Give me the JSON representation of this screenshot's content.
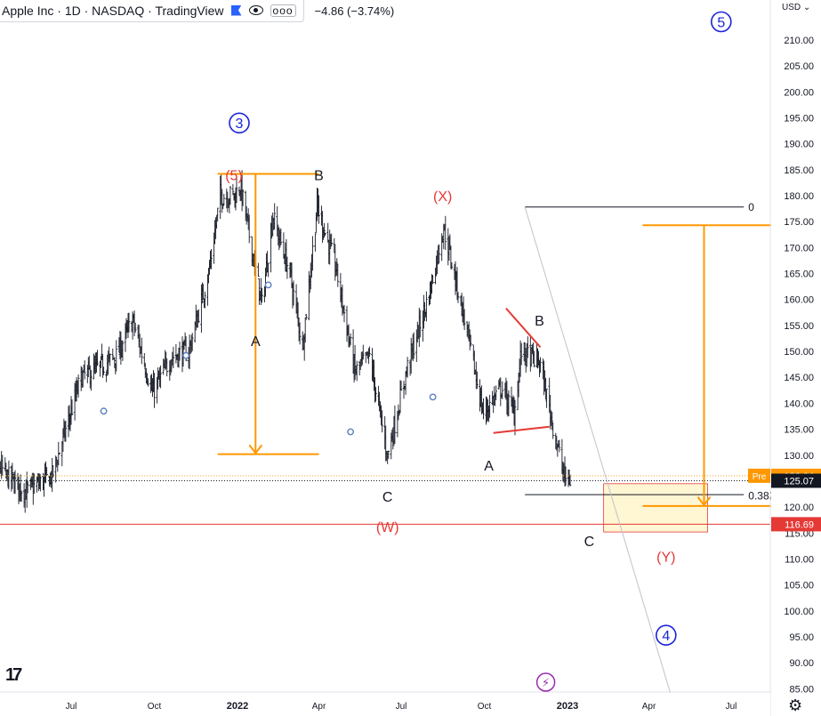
{
  "header": {
    "title": "Apple Inc · 1D · NASDAQ · TradingView",
    "flag_icon": "flag-icon",
    "eye_icon": "eye-icon",
    "more_icon": "more-icon",
    "more_label": "ooo",
    "change": "−4.86 (−3.74%)"
  },
  "chart_data": {
    "type": "candlestick",
    "currency": "USD",
    "y_ticks": [
      85,
      90,
      95,
      100,
      105,
      110,
      115,
      120,
      125,
      130,
      135,
      140,
      145,
      150,
      155,
      160,
      165,
      170,
      175,
      180,
      185,
      190,
      195,
      200,
      205,
      210
    ],
    "x_ticks": [
      "Jul",
      "Oct",
      "2022",
      "Apr",
      "Jul",
      "Oct",
      "2023",
      "Apr",
      "Jul"
    ],
    "price_path": [
      [
        "2021-03-24",
        133
      ],
      [
        "2021-04-20",
        126
      ],
      [
        "2021-05-12",
        123
      ],
      [
        "2021-06-10",
        126
      ],
      [
        "2021-07-12",
        145
      ],
      [
        "2021-08-02",
        147
      ],
      [
        "2021-08-20",
        149
      ],
      [
        "2021-09-07",
        156
      ],
      [
        "2021-09-29",
        142
      ],
      [
        "2021-10-20",
        149
      ],
      [
        "2021-11-08",
        150
      ],
      [
        "2021-11-30",
        165
      ],
      [
        "2021-12-13",
        180
      ],
      [
        "2021-12-29",
        180
      ],
      [
        "2022-01-04",
        182
      ],
      [
        "2022-01-28",
        159
      ],
      [
        "2022-02-09",
        176
      ],
      [
        "2022-02-28",
        165
      ],
      [
        "2022-03-14",
        151
      ],
      [
        "2022-03-30",
        178
      ],
      [
        "2022-04-20",
        166
      ],
      [
        "2022-05-11",
        146
      ],
      [
        "2022-05-27",
        149
      ],
      [
        "2022-06-16",
        130
      ],
      [
        "2022-07-08",
        147
      ],
      [
        "2022-08-01",
        161
      ],
      [
        "2022-08-17",
        174
      ],
      [
        "2022-09-08",
        157
      ],
      [
        "2022-09-30",
        138
      ],
      [
        "2022-10-20",
        143
      ],
      [
        "2022-11-03",
        138
      ],
      [
        "2022-11-11",
        150
      ],
      [
        "2022-12-01",
        148
      ],
      [
        "2022-12-28",
        126
      ],
      [
        "2023-01-04",
        125
      ]
    ],
    "price_labels": [
      {
        "label": "Pre",
        "value": "126.04",
        "color": "#ff9800"
      },
      {
        "label": "",
        "value": "125.07",
        "color": "#131722"
      },
      {
        "label": "",
        "value": "116.69",
        "color": "#e53935"
      }
    ],
    "currency_label": "USD",
    "annotations": [
      {
        "text": "3",
        "style": "circle-blue",
        "date": "2022-01-03",
        "price": 194
      },
      {
        "text": "(5)",
        "style": "red",
        "date": "2021-12-28",
        "price": 184
      },
      {
        "text": "B",
        "style": "black",
        "date": "2022-04-01",
        "price": 184
      },
      {
        "text": "A",
        "style": "black",
        "date": "2022-01-21",
        "price": 152
      },
      {
        "text": "(X)",
        "style": "red",
        "date": "2022-08-16",
        "price": 180
      },
      {
        "text": "C",
        "style": "black",
        "date": "2022-06-16",
        "price": 122
      },
      {
        "text": "(W)",
        "style": "red",
        "date": "2022-06-16",
        "price": 116.2
      },
      {
        "text": "A",
        "style": "black",
        "date": "2022-10-06",
        "price": 128
      },
      {
        "text": "B",
        "style": "black",
        "date": "2022-12-01",
        "price": 156
      },
      {
        "text": "C",
        "style": "black",
        "date": "2023-01-25",
        "price": 113.5
      },
      {
        "text": "(Y)",
        "style": "red",
        "date": "2023-04-20",
        "price": 110.5
      },
      {
        "text": "4",
        "style": "circle-blue",
        "date": "2023-04-20",
        "price": 95.3
      },
      {
        "text": "5",
        "style": "circle-blue",
        "date": "2023-06-20",
        "price": 213.5
      },
      {
        "text": "0",
        "style": "black-small",
        "date": "2023-07-20",
        "price": 177.8
      },
      {
        "text": "0.382",
        "style": "black-small",
        "date": "2023-07-20",
        "price": 122.2
      }
    ]
  },
  "branding": {
    "logo_text": "17",
    "settings_icon": "gear-icon",
    "event_icon": "lightning-icon"
  }
}
